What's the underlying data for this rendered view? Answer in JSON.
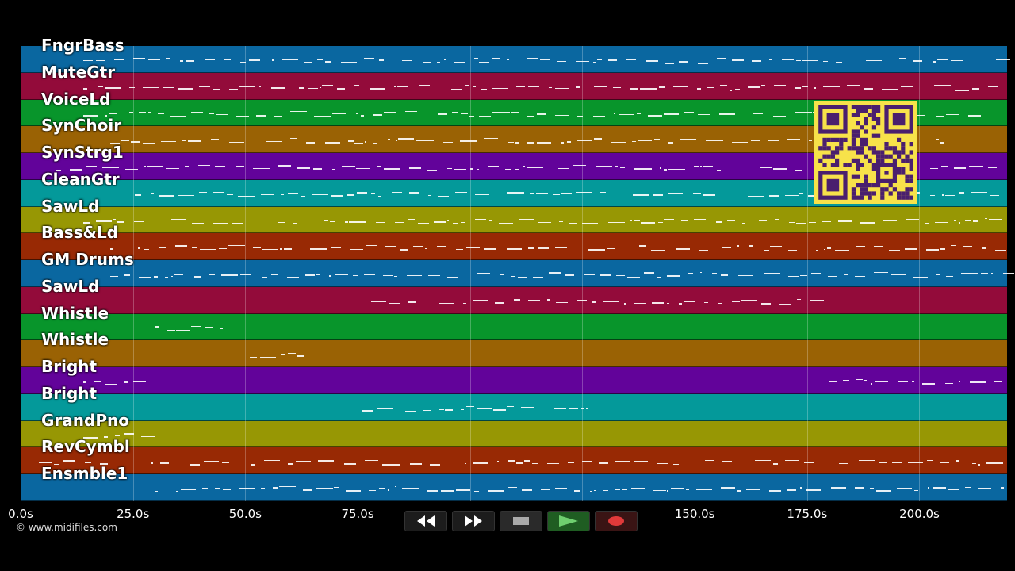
{
  "tracks": [
    {
      "name": "FngrBass",
      "color": "#0a67a0"
    },
    {
      "name": "MuteGtr",
      "color": "#930b3a"
    },
    {
      "name": "VoiceLd",
      "color": "#08952b"
    },
    {
      "name": "SynChoir",
      "color": "#9a6204"
    },
    {
      "name": "SynStrg1",
      "color": "#62039a"
    },
    {
      "name": "CleanGtr",
      "color": "#04999a"
    },
    {
      "name": "SawLd",
      "color": "#979704"
    },
    {
      "name": "Bass&Ld",
      "color": "#982904"
    },
    {
      "name": "GM Drums",
      "color": "#0a67a0"
    },
    {
      "name": "SawLd",
      "color": "#930b3a"
    },
    {
      "name": "Whistle",
      "color": "#08952b"
    },
    {
      "name": "Whistle",
      "color": "#9a6204"
    },
    {
      "name": "Bright",
      "color": "#62039a"
    },
    {
      "name": "Bright",
      "color": "#04999a"
    },
    {
      "name": "GrandPno",
      "color": "#979704"
    },
    {
      "name": "RevCymbl",
      "color": "#982904"
    },
    {
      "name": "Ensmble1",
      "color": "#0a67a0"
    }
  ],
  "time_axis": {
    "ticks": [
      "0.0s",
      "25.0s",
      "50.0s",
      "75.0s",
      "150.0s",
      "175.0s",
      "200.0s"
    ],
    "tick_values": [
      0,
      25,
      50,
      75,
      150,
      175,
      200
    ],
    "gridlines": [
      0,
      25,
      50,
      75,
      100,
      125,
      150,
      175,
      200
    ],
    "max_seconds": 219.5
  },
  "copyright": "© www.midifiles.com",
  "transport": [
    {
      "name": "rewind-button",
      "icon": "rewind-icon",
      "symbol": "◀◀"
    },
    {
      "name": "fast-forward-button",
      "icon": "fast-forward-icon",
      "symbol": "▶▶"
    },
    {
      "name": "stop-button",
      "icon": "stop-icon",
      "symbol": "■"
    },
    {
      "name": "play-button",
      "icon": "play-icon",
      "symbol": "▶"
    },
    {
      "name": "record-button",
      "icon": "record-icon",
      "symbol": "●"
    }
  ],
  "qr_code": {
    "icon": "qr-code-icon",
    "color": "#f7e24a"
  }
}
